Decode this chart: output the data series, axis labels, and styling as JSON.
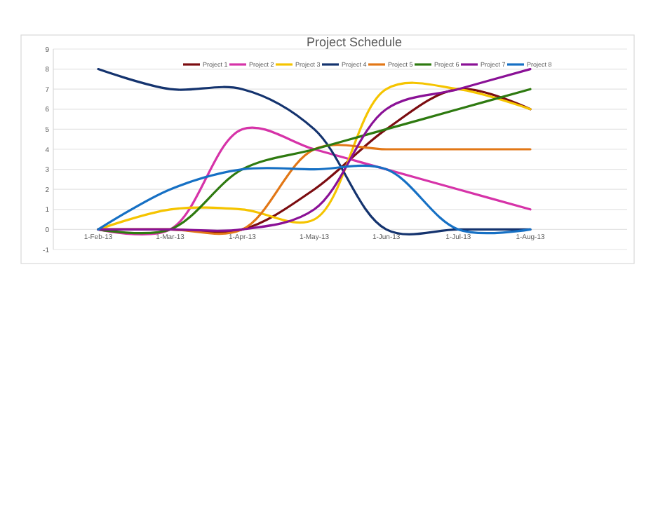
{
  "chart_data": {
    "type": "line",
    "title": "Project Schedule",
    "categories": [
      "1-Feb-13",
      "1-Mar-13",
      "1-Apr-13",
      "1-May-13",
      "1-Jun-13",
      "1-Jul-13",
      "1-Aug-13"
    ],
    "series": [
      {
        "name": "Project 1",
        "color": "#7b0c10",
        "values": [
          0,
          0,
          0,
          2,
          5,
          7,
          6
        ]
      },
      {
        "name": "Project 2",
        "color": "#d633a8",
        "values": [
          0,
          0,
          5,
          4,
          3,
          2,
          1
        ]
      },
      {
        "name": "Project 3",
        "color": "#f5c400",
        "values": [
          0,
          1,
          1,
          0.5,
          7,
          7,
          6
        ]
      },
      {
        "name": "Project 4",
        "color": "#14336e",
        "values": [
          8,
          7,
          7,
          5,
          0,
          0,
          0
        ]
      },
      {
        "name": "Project 5",
        "color": "#e27716",
        "values": [
          0,
          0,
          0,
          4,
          4,
          4,
          4
        ]
      },
      {
        "name": "Project 6",
        "color": "#2e7a10",
        "values": [
          0,
          0,
          3,
          4,
          5,
          6,
          7
        ]
      },
      {
        "name": "Project 7",
        "color": "#8a1196",
        "values": [
          0,
          0,
          0,
          1,
          6,
          7,
          8
        ]
      },
      {
        "name": "Project 8",
        "color": "#1670c4",
        "values": [
          0,
          2,
          3,
          3,
          3,
          0,
          0
        ]
      }
    ],
    "ylim": [
      -1,
      9
    ],
    "yticks": [
      -1,
      0,
      1,
      2,
      3,
      4,
      5,
      6,
      7,
      8,
      9
    ],
    "grid": "y",
    "legend": "top",
    "marker": "none",
    "line_style": "solid"
  }
}
